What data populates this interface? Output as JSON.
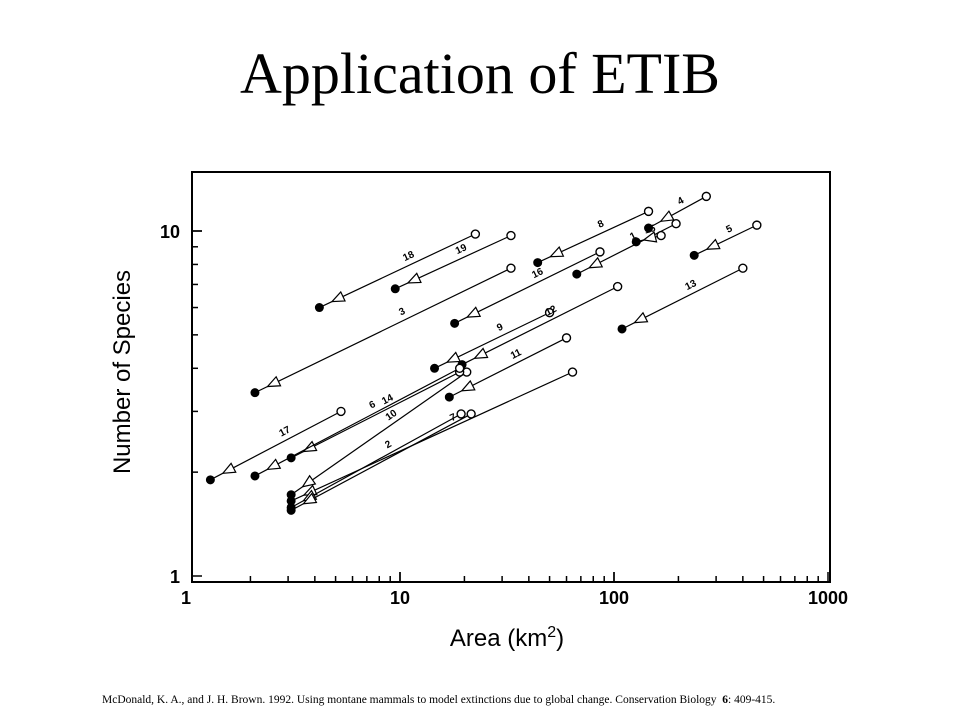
{
  "slide": {
    "title": "Application of ETIB",
    "citation": {
      "text": "McDonald, K. A., and J. H. Brown. 1992. Using montane mammals to model extinctions due to global change. Conservation Biology",
      "volume": "6",
      "pages": ": 409-415."
    }
  },
  "chart_data": {
    "type": "scatter",
    "xscale": "log",
    "yscale": "log",
    "xlim": [
      1,
      1000
    ],
    "ylim": [
      1,
      14
    ],
    "xlabel": "Area (km",
    "xlabel_sup": "2",
    "xlabel_end": ")",
    "ylabel": "Number of Species",
    "x_ticks": [
      "1",
      "10",
      "100",
      "1000"
    ],
    "y_ticks": [
      "1",
      "10"
    ],
    "legend": "none",
    "grid": false,
    "series": [
      {
        "name": "18",
        "x1": 22.5,
        "y1": 9.8,
        "x2": 4.2,
        "y2": 6.0
      },
      {
        "name": "19",
        "x1": 33,
        "y1": 9.7,
        "x2": 9.5,
        "y2": 6.8
      },
      {
        "name": "3",
        "x1": 33,
        "y1": 7.8,
        "x2": 2.1,
        "y2": 3.4
      },
      {
        "name": "16",
        "x1": 86,
        "y1": 8.7,
        "x2": 18,
        "y2": 5.4
      },
      {
        "name": "9",
        "x1": 50,
        "y1": 5.8,
        "x2": 14.5,
        "y2": 4.0
      },
      {
        "name": "12",
        "x1": 104,
        "y1": 6.9,
        "x2": 19.5,
        "y2": 4.1
      },
      {
        "name": "8",
        "x1": 145,
        "y1": 11.4,
        "x2": 44,
        "y2": 8.1
      },
      {
        "name": "4",
        "x1": 270,
        "y1": 12.6,
        "x2": 145,
        "y2": 10.2
      },
      {
        "name": "1",
        "x1": 195,
        "y1": 10.5,
        "x2": 67,
        "y2": 7.5
      },
      {
        "name": "15",
        "x1": 166,
        "y1": 9.7,
        "x2": 127,
        "y2": 9.3
      },
      {
        "name": "5",
        "x1": 465,
        "y1": 10.4,
        "x2": 237,
        "y2": 8.5
      },
      {
        "name": "13",
        "x1": 400,
        "y1": 7.8,
        "x2": 109,
        "y2": 5.2
      },
      {
        "name": "11",
        "x1": 60,
        "y1": 4.9,
        "x2": 17,
        "y2": 3.3
      },
      {
        "name": "10",
        "x1": 20.5,
        "y1": 3.9,
        "x2": 3.1,
        "y2": 1.72
      },
      {
        "name": "7",
        "x1": 64,
        "y1": 3.9,
        "x2": 3.1,
        "y2": 1.65
      },
      {
        "name": "14",
        "x1": 19,
        "y1": 3.9,
        "x2": 3.1,
        "y2": 2.2
      },
      {
        "name": "17",
        "x1": 5.3,
        "y1": 3.0,
        "x2": 1.3,
        "y2": 1.9
      },
      {
        "name": "6",
        "x1": 19,
        "y1": 4.0,
        "x2": 2.1,
        "y2": 1.95
      },
      {
        "name": "2",
        "x1": 19.3,
        "y1": 2.95,
        "x2": 3.1,
        "y2": 1.58
      },
      {
        "name": "",
        "x1": 21.5,
        "y1": 2.95,
        "x2": 3.1,
        "y2": 1.55
      }
    ]
  }
}
